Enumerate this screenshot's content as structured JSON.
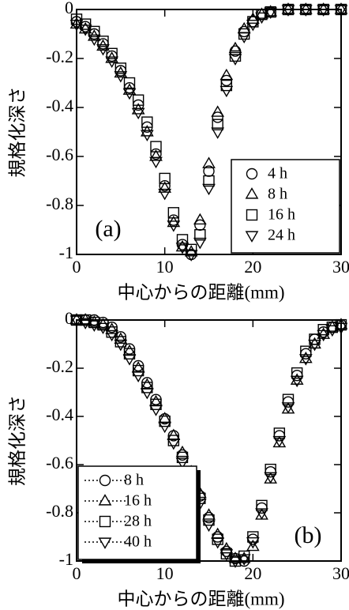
{
  "chart_data": [
    {
      "type": "scatter",
      "panel_label": "(a)",
      "xlabel": "中心からの距離(mm)",
      "ylabel": "規格化深さ",
      "xlim": [
        0,
        30
      ],
      "ylim": [
        -1,
        0
      ],
      "xticks": [
        0,
        10,
        20,
        30
      ],
      "yticks": [
        0,
        -0.2,
        -0.4,
        -0.6,
        -0.8,
        -1
      ],
      "legend": "lower right",
      "legend_line": "none",
      "series": [
        {
          "name": "4 h",
          "marker": "circle",
          "color": "#000000",
          "x": [
            0,
            1,
            2,
            3,
            4,
            5,
            6,
            7,
            8,
            9,
            10,
            11,
            12,
            13,
            14,
            15,
            16,
            17,
            18,
            19,
            20,
            21,
            22,
            24,
            26,
            28,
            30
          ],
          "values": [
            -0.05,
            -0.07,
            -0.1,
            -0.14,
            -0.19,
            -0.25,
            -0.32,
            -0.39,
            -0.48,
            -0.59,
            -0.72,
            -0.86,
            -0.96,
            -1,
            -0.88,
            -0.66,
            -0.44,
            -0.29,
            -0.17,
            -0.09,
            -0.05,
            -0.02,
            -0.01,
            0,
            0,
            0,
            0
          ]
        },
        {
          "name": "8 h",
          "marker": "triangle-up",
          "color": "#000000",
          "x": [
            0,
            1,
            2,
            3,
            4,
            5,
            6,
            7,
            8,
            9,
            10,
            11,
            12,
            13,
            14,
            15,
            16,
            17,
            18,
            19,
            20,
            21,
            22,
            24,
            26,
            28,
            30
          ],
          "values": [
            -0.06,
            -0.08,
            -0.11,
            -0.15,
            -0.2,
            -0.26,
            -0.33,
            -0.41,
            -0.5,
            -0.6,
            -0.73,
            -0.87,
            -0.97,
            -0.99,
            -0.86,
            -0.63,
            -0.42,
            -0.27,
            -0.16,
            -0.08,
            -0.04,
            -0.02,
            -0.01,
            0,
            0,
            0,
            0
          ]
        },
        {
          "name": "16 h",
          "marker": "square",
          "color": "#000000",
          "x": [
            0,
            1,
            2,
            3,
            4,
            5,
            6,
            7,
            8,
            9,
            10,
            11,
            12,
            13,
            14,
            15,
            16,
            17,
            18,
            19,
            20,
            21,
            22,
            24,
            26,
            28,
            30
          ],
          "values": [
            -0.04,
            -0.06,
            -0.09,
            -0.13,
            -0.18,
            -0.24,
            -0.3,
            -0.37,
            -0.46,
            -0.56,
            -0.69,
            -0.83,
            -0.94,
            -0.98,
            -0.92,
            -0.7,
            -0.47,
            -0.31,
            -0.19,
            -0.1,
            -0.05,
            -0.02,
            -0.01,
            0,
            0,
            0,
            0
          ]
        },
        {
          "name": "24 h",
          "marker": "triangle-down",
          "color": "#000000",
          "x": [
            0,
            1,
            2,
            3,
            4,
            5,
            6,
            7,
            8,
            9,
            10,
            11,
            12,
            13,
            14,
            15,
            16,
            17,
            18,
            19,
            20,
            21,
            22,
            24,
            26,
            28,
            30
          ],
          "values": [
            -0.06,
            -0.08,
            -0.12,
            -0.16,
            -0.21,
            -0.27,
            -0.34,
            -0.42,
            -0.51,
            -0.62,
            -0.75,
            -0.88,
            -0.97,
            -1,
            -0.95,
            -0.73,
            -0.5,
            -0.33,
            -0.2,
            -0.11,
            -0.06,
            -0.03,
            -0.01,
            0,
            0,
            0,
            0
          ]
        }
      ]
    },
    {
      "type": "scatter",
      "panel_label": "(b)",
      "xlabel": "中心からの距離(mm)",
      "ylabel": "規格化深さ",
      "xlim": [
        0,
        30
      ],
      "ylim": [
        -1,
        0
      ],
      "xticks": [
        0,
        10,
        20,
        30
      ],
      "yticks": [
        0,
        -0.2,
        -0.4,
        -0.6,
        -0.8,
        -1
      ],
      "legend": "lower left",
      "legend_line": "dotted",
      "series": [
        {
          "name": "8 h",
          "marker": "circle",
          "color": "#000000",
          "x": [
            0,
            1,
            2,
            3,
            4,
            5,
            6,
            7,
            8,
            9,
            10,
            11,
            12,
            13,
            14,
            15,
            16,
            17,
            18,
            19,
            20,
            21,
            22,
            23,
            24,
            25,
            26,
            27,
            28,
            29,
            30
          ],
          "values": [
            0,
            0,
            0,
            -0.01,
            -0.03,
            -0.07,
            -0.12,
            -0.19,
            -0.26,
            -0.33,
            -0.41,
            -0.48,
            -0.56,
            -0.64,
            -0.73,
            -0.82,
            -0.9,
            -0.96,
            -0.99,
            -1,
            -0.91,
            -0.78,
            -0.63,
            -0.48,
            -0.34,
            -0.23,
            -0.14,
            -0.08,
            -0.05,
            -0.03,
            -0.02
          ]
        },
        {
          "name": "16 h",
          "marker": "triangle-up",
          "color": "#000000",
          "x": [
            0,
            1,
            2,
            3,
            4,
            5,
            6,
            7,
            8,
            9,
            10,
            11,
            12,
            13,
            14,
            15,
            16,
            17,
            18,
            19,
            20,
            21,
            22,
            23,
            24,
            25,
            26,
            27,
            28,
            29,
            30
          ],
          "values": [
            0,
            0,
            -0.01,
            -0.02,
            -0.04,
            -0.08,
            -0.13,
            -0.2,
            -0.27,
            -0.34,
            -0.41,
            -0.48,
            -0.55,
            -0.63,
            -0.72,
            -0.81,
            -0.89,
            -0.95,
            -0.99,
            -0.99,
            -0.94,
            -0.81,
            -0.66,
            -0.51,
            -0.37,
            -0.25,
            -0.16,
            -0.1,
            -0.06,
            -0.03,
            -0.02
          ]
        },
        {
          "name": "28 h",
          "marker": "square",
          "color": "#000000",
          "x": [
            0,
            1,
            2,
            3,
            4,
            5,
            6,
            7,
            8,
            9,
            10,
            11,
            12,
            13,
            14,
            15,
            16,
            17,
            18,
            19,
            20,
            21,
            22,
            23,
            24,
            25,
            26,
            27,
            28,
            29,
            30
          ],
          "values": [
            0,
            0,
            -0.01,
            -0.02,
            -0.05,
            -0.09,
            -0.14,
            -0.21,
            -0.28,
            -0.35,
            -0.42,
            -0.5,
            -0.57,
            -0.65,
            -0.74,
            -0.83,
            -0.91,
            -0.97,
            -1,
            -0.98,
            -0.9,
            -0.77,
            -0.62,
            -0.47,
            -0.33,
            -0.22,
            -0.13,
            -0.08,
            -0.04,
            -0.03,
            -0.02
          ]
        },
        {
          "name": "40 h",
          "marker": "triangle-down",
          "color": "#000000",
          "x": [
            0,
            1,
            2,
            3,
            4,
            5,
            6,
            7,
            8,
            9,
            10,
            11,
            12,
            13,
            14,
            15,
            16,
            17,
            18,
            19,
            20,
            21,
            22,
            23,
            24,
            25,
            26,
            27,
            28,
            29,
            30
          ],
          "values": [
            0,
            -0.01,
            -0.02,
            -0.03,
            -0.06,
            -0.1,
            -0.16,
            -0.23,
            -0.3,
            -0.37,
            -0.44,
            -0.51,
            -0.59,
            -0.67,
            -0.76,
            -0.85,
            -0.92,
            -0.97,
            -1,
            -0.99,
            -0.92,
            -0.8,
            -0.65,
            -0.5,
            -0.36,
            -0.25,
            -0.16,
            -0.1,
            -0.06,
            -0.04,
            -0.03
          ]
        }
      ]
    }
  ]
}
